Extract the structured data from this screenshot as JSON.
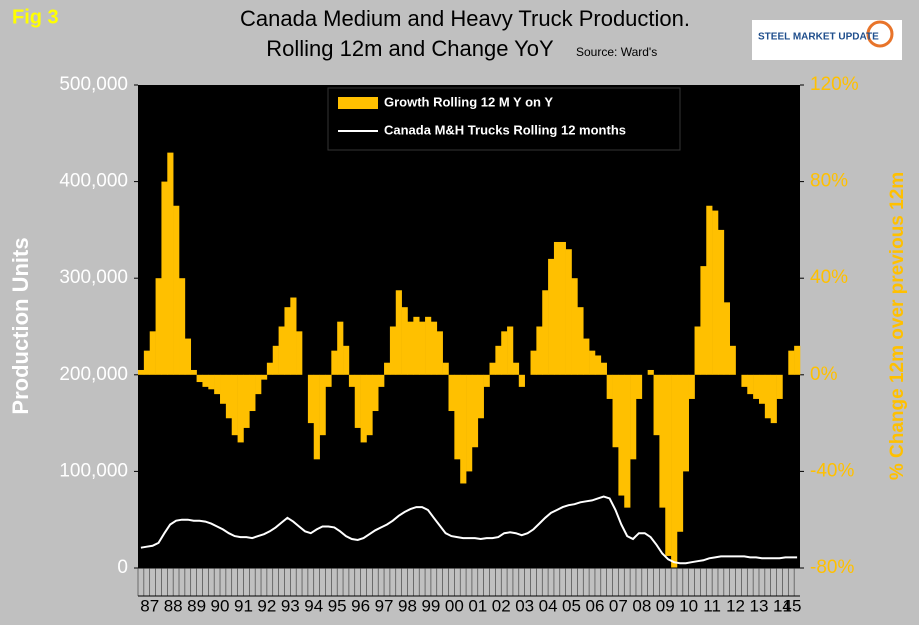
{
  "chart_data": {
    "type": "bar-line",
    "figure_label": "Fig 3",
    "title": "Canada Medium and Heavy Truck Production.",
    "title_line2": "Rolling 12m and Change YoY",
    "source": "Source: Ward's",
    "logo": "STEEL MARKET UPDATE",
    "y_label": "Production Units",
    "y2_label": "% Change 12m over previous 12m",
    "categories": [
      "87",
      null,
      null,
      null,
      "88",
      null,
      null,
      null,
      "89",
      null,
      null,
      null,
      "90",
      null,
      null,
      null,
      "91",
      null,
      null,
      null,
      "92",
      null,
      null,
      null,
      "93",
      null,
      null,
      null,
      "94",
      null,
      null,
      null,
      "95",
      null,
      null,
      null,
      "96",
      null,
      null,
      null,
      "97",
      null,
      null,
      null,
      "98",
      null,
      null,
      null,
      "99",
      null,
      null,
      null,
      "00",
      null,
      null,
      null,
      "01",
      null,
      null,
      null,
      "02",
      null,
      null,
      null,
      "03",
      null,
      null,
      null,
      "04",
      null,
      null,
      null,
      "05",
      null,
      null,
      null,
      "06",
      null,
      null,
      null,
      "07",
      null,
      null,
      null,
      "08",
      null,
      null,
      null,
      "09",
      null,
      null,
      null,
      "10",
      null,
      null,
      null,
      "11",
      null,
      null,
      null,
      "12",
      null,
      null,
      null,
      "13",
      null,
      null,
      null,
      "14",
      null,
      null,
      null,
      "15"
    ],
    "series": [
      {
        "name": "Growth Rolling 12 M Y on Y",
        "color": "#ffc000",
        "kind": "bar",
        "axis": "y2",
        "values": [
          2,
          10,
          18,
          40,
          80,
          92,
          70,
          40,
          15,
          2,
          -3,
          -5,
          -6,
          -8,
          -12,
          -18,
          -25,
          -28,
          -22,
          -15,
          -8,
          -2,
          5,
          12,
          20,
          28,
          32,
          18,
          0,
          -20,
          -35,
          -25,
          -5,
          10,
          22,
          12,
          -5,
          -22,
          -28,
          -25,
          -15,
          -5,
          5,
          20,
          35,
          28,
          22,
          24,
          22,
          24,
          22,
          18,
          5,
          -15,
          -35,
          -45,
          -40,
          -30,
          -18,
          -5,
          5,
          12,
          18,
          20,
          5,
          -5,
          0,
          10,
          20,
          35,
          48,
          55,
          55,
          52,
          40,
          28,
          15,
          10,
          8,
          5,
          -10,
          -30,
          -50,
          -55,
          -35,
          -10,
          0,
          2,
          -25,
          -55,
          -75,
          -80,
          -65,
          -40,
          -10,
          20,
          45,
          70,
          68,
          60,
          30,
          12,
          0,
          -5,
          -8,
          -10,
          -12,
          -18,
          -20,
          -10,
          0,
          10,
          12
        ]
      },
      {
        "name": "Canada M&H Trucks Rolling 12 months",
        "color": "#ffffff",
        "kind": "line",
        "values": [
          21000,
          22000,
          23000,
          26000,
          36000,
          45000,
          49000,
          50000,
          50000,
          49000,
          49000,
          48000,
          46000,
          43000,
          40000,
          36000,
          33000,
          32000,
          32000,
          31000,
          33000,
          35000,
          38000,
          42000,
          47000,
          52000,
          48000,
          43000,
          38000,
          36000,
          40000,
          43000,
          43000,
          42000,
          38000,
          33000,
          30000,
          29000,
          31000,
          35000,
          39000,
          42000,
          45000,
          49000,
          54000,
          58000,
          61000,
          63000,
          63000,
          60000,
          52000,
          44000,
          36000,
          33000,
          32000,
          31000,
          31000,
          31000,
          30000,
          31000,
          31000,
          32000,
          36000,
          37000,
          36000,
          34000,
          36000,
          40000,
          46000,
          52000,
          57000,
          60000,
          63000,
          65000,
          66000,
          68000,
          69000,
          70000,
          72000,
          74000,
          72000,
          60000,
          45000,
          33000,
          30000,
          36000,
          36000,
          32000,
          24000,
          15000,
          9000,
          6000,
          5000,
          5000,
          6000,
          7000,
          8000,
          10000,
          11000,
          12000,
          12000,
          12000,
          12000,
          12000,
          11000,
          11000,
          10000,
          10000,
          10000,
          10000,
          11000,
          11000,
          11000
        ]
      }
    ],
    "ylim": [
      0,
      500000
    ],
    "yticks": [
      0,
      {
        "value": 100000,
        "label": "100,000"
      },
      {
        "value": 200000,
        "label": "200,000"
      },
      {
        "value": 300000,
        "label": "300,000"
      },
      {
        "value": 400000,
        "label": "400,000"
      },
      {
        "value": 500000,
        "label": "500,000"
      }
    ],
    "y2lim": [
      -80,
      120
    ],
    "y2ticks": [
      {
        "value": -80,
        "label": "-80%"
      },
      {
        "value": -40,
        "label": "-40%"
      },
      {
        "value": 0,
        "label": "0%"
      },
      {
        "value": 40,
        "label": "40%"
      },
      {
        "value": 80,
        "label": "80%"
      },
      {
        "value": 120,
        "label": "120%"
      }
    ],
    "legend": "top"
  }
}
